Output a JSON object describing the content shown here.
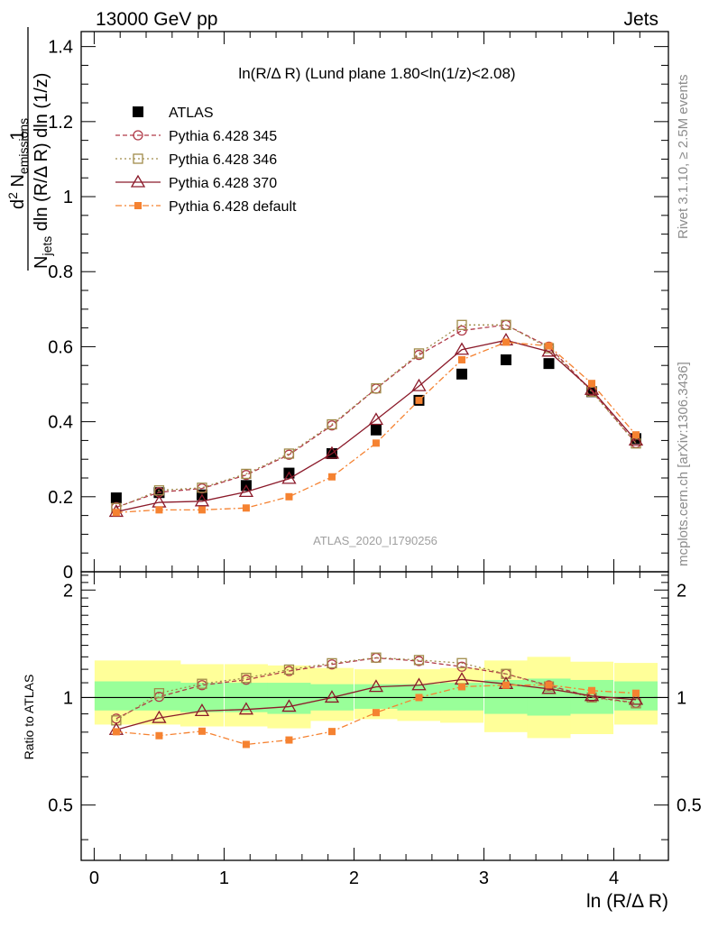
{
  "header": {
    "left": "13000 GeV pp",
    "right": "Jets",
    "side_top": "Rivet 3.1.10, ≥ 2.5M events",
    "side_bottom": "mcplots.cern.ch [arXiv:1306.3436]",
    "watermark": "ATLAS_2020_I1790256"
  },
  "chart_data": {
    "type": "scatter",
    "title": "ln(R/Δ R) (Lund plane 1.80<ln(1/z)<2.08)",
    "xlabel": "ln (R/Δ R)",
    "ylabel": "1/N_jets d²N_emissions / dln(R/ΔR) dln(1/z)",
    "ratio_ylabel": "Ratio to ATLAS",
    "xlim": [
      -0.1,
      4.42
    ],
    "ylim": [
      0,
      1.44
    ],
    "ratio_ylim": [
      0.35,
      2.25
    ],
    "x_ticks": [
      "0",
      "1",
      "2",
      "3",
      "4"
    ],
    "y_ticks": [
      "0",
      "0.2",
      "0.4",
      "0.6",
      "0.8",
      "1",
      "1.2",
      "1.4"
    ],
    "ratio_y_ticks": [
      "0.5",
      "1",
      "2"
    ],
    "legend_position": "top-left",
    "x": [
      0.17,
      0.5,
      0.83,
      1.17,
      1.5,
      1.83,
      2.17,
      2.5,
      2.83,
      3.17,
      3.5,
      3.83,
      4.17
    ],
    "series": [
      {
        "name": "ATLAS",
        "color": "#000000",
        "style": "data",
        "values": [
          0.197,
          0.211,
          0.205,
          0.23,
          0.263,
          0.315,
          0.378,
          0.457,
          0.527,
          0.565,
          0.555,
          0.48,
          0.355
        ]
      },
      {
        "name": "Pythia 6.428 345",
        "color": "#b03a48",
        "style": "circle-dashed",
        "values": [
          0.172,
          0.212,
          0.222,
          0.258,
          0.312,
          0.39,
          0.488,
          0.578,
          0.643,
          0.658,
          0.6,
          0.482,
          0.343
        ]
      },
      {
        "name": "Pythia 6.428 346",
        "color": "#a08c4a",
        "style": "square-dotted",
        "values": [
          0.17,
          0.217,
          0.224,
          0.261,
          0.315,
          0.393,
          0.489,
          0.582,
          0.658,
          0.658,
          0.596,
          0.48,
          0.342
        ]
      },
      {
        "name": "Pythia 6.428 370",
        "color": "#8b1a2a",
        "style": "triangle-solid",
        "values": [
          0.16,
          0.185,
          0.188,
          0.213,
          0.248,
          0.315,
          0.405,
          0.495,
          0.592,
          0.617,
          0.587,
          0.485,
          0.35
        ]
      },
      {
        "name": "Pythia 6.428 default",
        "color": "#f58231",
        "style": "filled-square-dashdot",
        "values": [
          0.158,
          0.165,
          0.165,
          0.17,
          0.2,
          0.253,
          0.343,
          0.457,
          0.565,
          0.612,
          0.602,
          0.502,
          0.365
        ]
      }
    ],
    "ratio_band_1sigma": {
      "color": "#99ff99",
      "lo": [
        0.92,
        0.92,
        0.91,
        0.91,
        0.9,
        0.92,
        0.93,
        0.92,
        0.92,
        0.9,
        0.89,
        0.9,
        0.92
      ],
      "hi": [
        1.11,
        1.11,
        1.1,
        1.1,
        1.1,
        1.09,
        1.09,
        1.09,
        1.1,
        1.12,
        1.13,
        1.12,
        1.11
      ]
    },
    "ratio_band_2sigma": {
      "color": "#ffff99",
      "lo": [
        0.84,
        0.84,
        0.83,
        0.83,
        0.82,
        0.86,
        0.87,
        0.86,
        0.85,
        0.8,
        0.77,
        0.79,
        0.84
      ],
      "hi": [
        1.27,
        1.27,
        1.24,
        1.24,
        1.23,
        1.21,
        1.2,
        1.2,
        1.21,
        1.27,
        1.3,
        1.26,
        1.25
      ]
    }
  }
}
